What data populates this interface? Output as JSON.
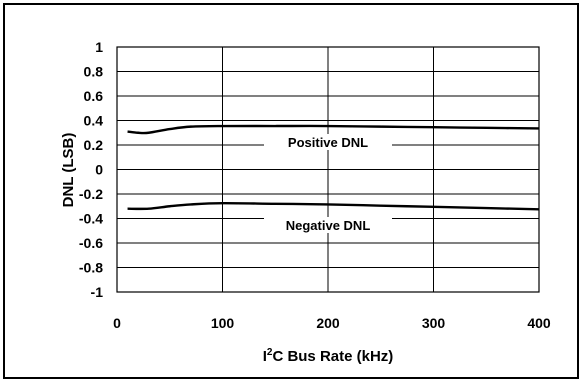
{
  "chart_data": {
    "type": "line",
    "xlabel_main": "I",
    "xlabel_sup": "2",
    "xlabel_rest": "C Bus Rate (kHz)",
    "ylabel": "DNL (LSB)",
    "xlim": [
      0,
      400
    ],
    "ylim": [
      -1,
      1
    ],
    "x_ticks": [
      "0",
      "100",
      "200",
      "300",
      "400"
    ],
    "y_ticks": [
      "1",
      "0.8",
      "0.6",
      "0.4",
      "0.2",
      "0",
      "-0.2",
      "-0.4",
      "-0.6",
      "-0.8",
      "-1"
    ],
    "grid": true,
    "series": [
      {
        "name": "Positive DNL",
        "x": [
          10,
          20,
          30,
          50,
          70,
          100,
          150,
          200,
          250,
          300,
          350,
          400
        ],
        "y": [
          0.31,
          0.3,
          0.3,
          0.33,
          0.35,
          0.355,
          0.355,
          0.355,
          0.35,
          0.345,
          0.34,
          0.335
        ]
      },
      {
        "name": "Negative DNL",
        "x": [
          10,
          30,
          50,
          70,
          100,
          150,
          200,
          250,
          300,
          350,
          400
        ],
        "y": [
          -0.32,
          -0.32,
          -0.3,
          -0.285,
          -0.275,
          -0.28,
          -0.285,
          -0.295,
          -0.305,
          -0.315,
          -0.325
        ]
      }
    ]
  }
}
